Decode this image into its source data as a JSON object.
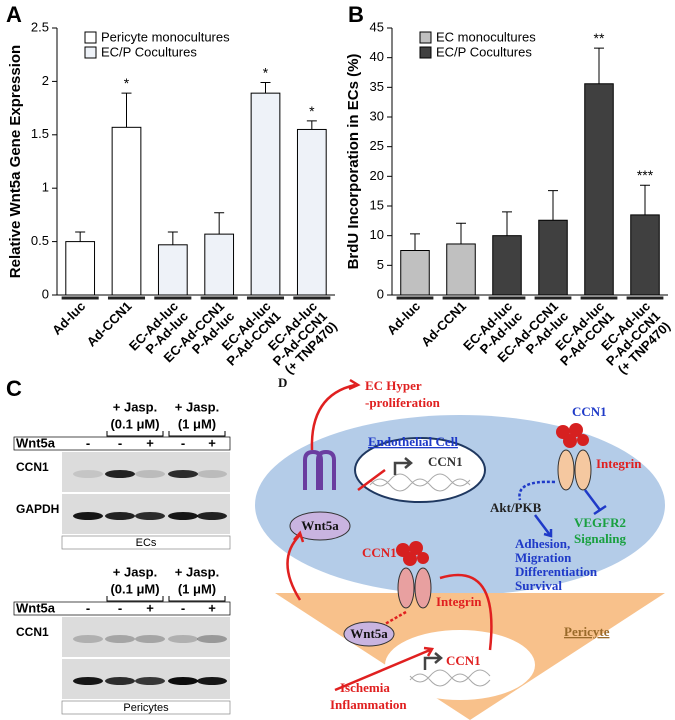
{
  "chart_data": [
    {
      "type": "bar",
      "panel_label": "A",
      "y_label": "Relative Wnt5a Gene Expression",
      "categories": [
        [
          "Ad-luc"
        ],
        [
          "Ad-CCN1"
        ],
        [
          "EC-Ad-luc",
          "P-Ad-luc"
        ],
        [
          "EC-Ad-CCN1",
          "P-Ad-luc"
        ],
        [
          "EC-Ad-luc",
          "P-Ad-CCN1"
        ],
        [
          "EC-Ad-luc",
          "P-Ad-CCN1",
          "(+ TNP470)"
        ]
      ],
      "series": [
        {
          "name": "Pericyte monocultures",
          "color": "#ffffff",
          "values": [
            0.5,
            1.57,
            null,
            null,
            null,
            null
          ],
          "errors": [
            0.09,
            0.32,
            null,
            null,
            null,
            null
          ]
        },
        {
          "name": "EC/P Cocultures",
          "color": "#eef2f8",
          "values": [
            null,
            null,
            0.47,
            0.57,
            1.89,
            1.55
          ],
          "errors": [
            null,
            null,
            0.12,
            0.2,
            0.1,
            0.08
          ]
        }
      ],
      "annotations": [
        null,
        "*",
        null,
        null,
        "*",
        "*"
      ],
      "ylim": [
        0,
        2.5
      ],
      "yticks": [
        0,
        0.5,
        1,
        1.5,
        2,
        2.5
      ]
    },
    {
      "type": "bar",
      "panel_label": "B",
      "y_label": "BrdU Incorporation in ECs (%)",
      "categories": [
        [
          "Ad-luc"
        ],
        [
          "Ad-CCN1"
        ],
        [
          "EC-Ad-luc",
          "P-Ad-luc"
        ],
        [
          "EC-Ad-CCN1",
          "P-Ad-luc"
        ],
        [
          "EC-Ad-luc",
          "P-Ad-CCN1"
        ],
        [
          "EC-Ad-luc",
          "P-Ad-CCN1",
          "(+ TNP470)"
        ]
      ],
      "series": [
        {
          "name": "EC monocultures",
          "color": "#c0c0c0",
          "values": [
            7.5,
            8.6,
            null,
            null,
            null,
            null
          ],
          "errors": [
            2.8,
            3.5,
            null,
            null,
            null,
            null
          ]
        },
        {
          "name": "EC/P Cocultures",
          "color": "#404040",
          "values": [
            null,
            null,
            10,
            12.6,
            35.6,
            13.5
          ],
          "errors": [
            null,
            null,
            4,
            5,
            6,
            5
          ]
        }
      ],
      "annotations": [
        null,
        null,
        null,
        null,
        "**",
        "***"
      ],
      "ylim": [
        0,
        45
      ],
      "yticks": [
        0,
        5,
        10,
        15,
        20,
        25,
        30,
        35,
        40,
        45
      ]
    }
  ],
  "panel_c": {
    "label": "C",
    "ecs": {
      "groups": [
        [
          "+ Jasp.",
          "(0.1 μM)"
        ],
        [
          "+ Jasp.",
          "(1 μM)"
        ]
      ],
      "treatment": "Wnt5a",
      "lanes": [
        "-",
        "-",
        "+",
        "-",
        "+"
      ],
      "rows": [
        "CCN1",
        "GAPDH"
      ],
      "caption": "ECs"
    },
    "pericytes": {
      "groups": [
        [
          "+ Jasp.",
          "(0.1 μM)"
        ],
        [
          "+ Jasp.",
          "(1 μM)"
        ]
      ],
      "treatment": "Wnt5a",
      "lanes": [
        "-",
        "-",
        "+",
        "-",
        "+"
      ],
      "rows": [
        "CCN1"
      ],
      "caption": "Pericytes"
    }
  },
  "panel_d": {
    "label": "D",
    "ec_hyper": [
      "EC Hyper",
      "-proliferation"
    ],
    "ccn1_top": "CCN1",
    "endothelial_cell": "Endothelial Cell",
    "ccn1_gene_ec": "CCN1",
    "integrin_ec": "Integrin",
    "akt": "Akt/PKB",
    "vegfr2": [
      "VEGFR2",
      "Signaling"
    ],
    "wnt5a_ec": "Wnt5a",
    "outcomes": [
      "Adhesion,",
      "Migration",
      "Differentiation",
      "Survival"
    ],
    "ccn1_pericyte": "CCN1",
    "integrin_pericyte": "Integrin",
    "wnt5a_pericyte": "Wnt5a",
    "ccn1_gene_pericyte": "CCN1",
    "pericyte": "Pericyte",
    "stimuli": [
      "Ischemia",
      "Inflammation"
    ]
  }
}
